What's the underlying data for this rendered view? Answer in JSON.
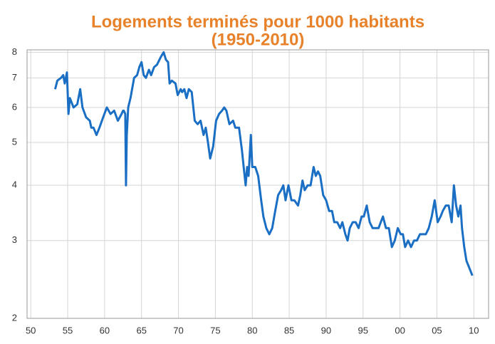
{
  "chart_data": {
    "type": "line",
    "title": [
      "Logements terminés pour 1000 habitants",
      "(1950-2010)"
    ],
    "x": [
      1953.3,
      1953.6,
      1954.1,
      1954.4,
      1954.6,
      1954.9,
      1955.1,
      1955.3,
      1955.8,
      1956.3,
      1956.7,
      1957.0,
      1957.5,
      1958.0,
      1958.2,
      1958.5,
      1958.9,
      1959.3,
      1959.8,
      1960.3,
      1960.8,
      1961.3,
      1961.8,
      1962.3,
      1962.5,
      1962.6,
      1962.8,
      1962.9,
      1963.0,
      1963.2,
      1963.5,
      1964.0,
      1964.4,
      1964.7,
      1965.0,
      1965.3,
      1965.6,
      1966.0,
      1966.3,
      1966.7,
      1967.1,
      1967.6,
      1968.0,
      1968.3,
      1968.6,
      1968.8,
      1969.1,
      1969.6,
      1969.9,
      1970.3,
      1970.5,
      1970.8,
      1971.1,
      1971.4,
      1971.8,
      1972.2,
      1972.6,
      1973.0,
      1973.4,
      1973.7,
      1974.0,
      1974.3,
      1974.7,
      1975.1,
      1975.5,
      1975.9,
      1976.2,
      1976.5,
      1976.9,
      1977.4,
      1977.7,
      1978.2,
      1978.6,
      1978.9,
      1979.1,
      1979.3,
      1979.5,
      1979.8,
      1980.0,
      1980.4,
      1980.8,
      1981.2,
      1981.5,
      1981.9,
      1982.3,
      1982.7,
      1983.1,
      1983.5,
      1983.9,
      1984.2,
      1984.5,
      1984.9,
      1985.3,
      1985.7,
      1986.2,
      1986.5,
      1986.8,
      1987.1,
      1987.5,
      1987.9,
      1988.3,
      1988.6,
      1988.9,
      1989.2,
      1989.6,
      1990.0,
      1990.4,
      1990.8,
      1991.1,
      1991.5,
      1991.9,
      1992.2,
      1992.6,
      1992.9,
      1993.2,
      1993.6,
      1994.0,
      1994.4,
      1994.8,
      1995.1,
      1995.5,
      1995.9,
      1996.3,
      1996.7,
      1997.1,
      1997.4,
      1997.7,
      1998.1,
      1998.5,
      1998.9,
      1999.3,
      1999.7,
      2000.1,
      2000.4,
      2000.7,
      2001.1,
      2001.5,
      2001.9,
      2002.3,
      2002.7,
      2003.1,
      2003.5,
      2003.9,
      2004.3,
      2004.7,
      2005.1,
      2005.5,
      2005.8,
      2006.2,
      2006.6,
      2007.0,
      2007.3,
      2007.6,
      2007.9,
      2008.2,
      2008.4,
      2008.7,
      2009.0,
      2009.4,
      2009.8
    ],
    "values": [
      6.6,
      6.9,
      7.0,
      7.1,
      6.8,
      7.2,
      5.8,
      6.3,
      6.0,
      6.1,
      6.6,
      6.0,
      5.7,
      5.6,
      5.4,
      5.4,
      5.2,
      5.4,
      5.7,
      6.0,
      5.8,
      5.9,
      5.6,
      5.8,
      5.9,
      5.9,
      5.8,
      4.0,
      5.2,
      6.0,
      6.3,
      7.0,
      7.1,
      7.4,
      7.6,
      7.1,
      7.0,
      7.3,
      7.1,
      7.4,
      7.5,
      7.8,
      8.0,
      7.7,
      7.6,
      6.8,
      6.9,
      6.8,
      6.4,
      6.6,
      6.5,
      6.6,
      6.3,
      6.6,
      6.5,
      5.6,
      5.5,
      5.6,
      5.2,
      5.4,
      5.0,
      4.6,
      4.9,
      5.6,
      5.8,
      5.9,
      6.0,
      5.9,
      5.5,
      5.6,
      5.4,
      5.4,
      4.8,
      4.3,
      4.0,
      4.4,
      4.2,
      5.2,
      4.4,
      4.4,
      4.2,
      3.7,
      3.4,
      3.2,
      3.1,
      3.2,
      3.5,
      3.8,
      3.9,
      4.0,
      3.7,
      4.0,
      3.7,
      3.7,
      3.6,
      3.8,
      4.1,
      3.9,
      4.0,
      4.0,
      4.4,
      4.2,
      4.3,
      4.2,
      3.8,
      3.7,
      3.5,
      3.5,
      3.3,
      3.3,
      3.2,
      3.3,
      3.1,
      3.0,
      3.2,
      3.3,
      3.3,
      3.2,
      3.4,
      3.4,
      3.6,
      3.3,
      3.2,
      3.2,
      3.2,
      3.3,
      3.4,
      3.2,
      3.2,
      2.9,
      3.0,
      3.2,
      3.1,
      3.1,
      2.9,
      3.0,
      2.9,
      3.0,
      3.0,
      3.1,
      3.1,
      3.1,
      3.2,
      3.4,
      3.7,
      3.3,
      3.4,
      3.5,
      3.6,
      3.6,
      3.3,
      4.0,
      3.6,
      3.4,
      3.6,
      3.2,
      2.9,
      2.7,
      2.6,
      2.5
    ],
    "color": "#1a6fc4",
    "title_color": "#e8822a",
    "xlim": [
      1949.5,
      2012
    ],
    "xticks": [
      {
        "value": 1950,
        "label": "50"
      },
      {
        "value": 1955,
        "label": "55"
      },
      {
        "value": 1960,
        "label": "60"
      },
      {
        "value": 1965,
        "label": "65"
      },
      {
        "value": 1970,
        "label": "70"
      },
      {
        "value": 1975,
        "label": "75"
      },
      {
        "value": 1980,
        "label": "80"
      },
      {
        "value": 1985,
        "label": "85"
      },
      {
        "value": 1990,
        "label": "90"
      },
      {
        "value": 1995,
        "label": "95"
      },
      {
        "value": 2000,
        "label": "00"
      },
      {
        "value": 2005,
        "label": "05"
      },
      {
        "value": 2010,
        "label": "10"
      }
    ],
    "ylim": [
      2,
      8.1
    ],
    "yticks": [
      2,
      3,
      4,
      5,
      6,
      7,
      8
    ],
    "log_y": true,
    "grid": true
  }
}
